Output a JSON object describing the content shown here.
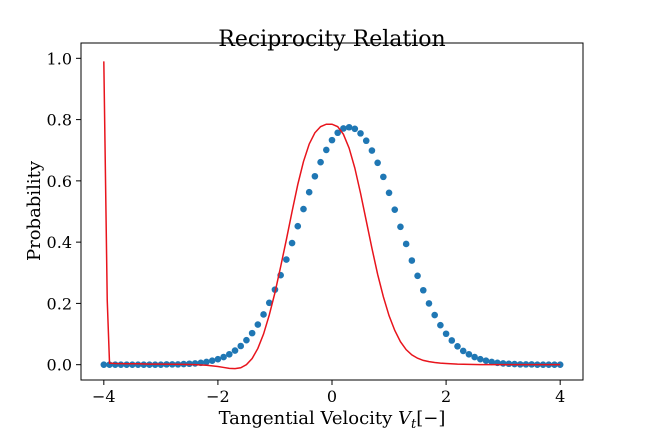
{
  "chart_data": {
    "type": "line",
    "title": "Reciprocity Relation",
    "xlabel_main": "Tangential Velocity ",
    "xlabel_var": "V",
    "xlabel_sub": "t",
    "xlabel_unit": "[−]",
    "ylabel": "Probability",
    "xlim": [
      -4.4,
      4.4
    ],
    "ylim": [
      -0.05,
      1.05
    ],
    "xticks": [
      -4,
      -2,
      0,
      2,
      4
    ],
    "xtick_labels": [
      "−4",
      "−2",
      "0",
      "2",
      "4"
    ],
    "yticks": [
      0.0,
      0.2,
      0.4,
      0.6,
      0.8,
      1.0
    ],
    "ytick_labels": [
      "0.0",
      "0.2",
      "0.4",
      "0.6",
      "0.8",
      "1.0"
    ],
    "grid": false,
    "series": [
      {
        "style": "markers",
        "color": "#1f77b4",
        "x": [
          -4.0,
          -3.9,
          -3.8,
          -3.7,
          -3.6,
          -3.5,
          -3.4,
          -3.3,
          -3.2,
          -3.1,
          -3.0,
          -2.9,
          -2.8,
          -2.7,
          -2.6,
          -2.5,
          -2.4,
          -2.3,
          -2.2,
          -2.1,
          -2.0,
          -1.9,
          -1.8,
          -1.7,
          -1.6,
          -1.5,
          -1.4,
          -1.3,
          -1.2,
          -1.1,
          -1.0,
          -0.9,
          -0.8,
          -0.7,
          -0.6,
          -0.5,
          -0.4,
          -0.3,
          -0.2,
          -0.1,
          0.0,
          0.1,
          0.2,
          0.3,
          0.4,
          0.5,
          0.6,
          0.7,
          0.8,
          0.9,
          1.0,
          1.1,
          1.2,
          1.3,
          1.4,
          1.5,
          1.6,
          1.7,
          1.8,
          1.9,
          2.0,
          2.1,
          2.2,
          2.3,
          2.4,
          2.5,
          2.6,
          2.7,
          2.8,
          2.9,
          3.0,
          3.1,
          3.2,
          3.3,
          3.4,
          3.5,
          3.6,
          3.7,
          3.8,
          3.9,
          4.0
        ],
        "y": [
          0.0,
          0.0,
          0.0,
          0.0,
          0.0,
          0.0,
          0.0,
          0.0,
          0.0,
          0.0,
          0.0,
          0.001,
          0.001,
          0.001,
          0.002,
          0.003,
          0.004,
          0.006,
          0.009,
          0.013,
          0.018,
          0.025,
          0.034,
          0.046,
          0.061,
          0.08,
          0.103,
          0.131,
          0.164,
          0.202,
          0.245,
          0.292,
          0.343,
          0.397,
          0.452,
          0.508,
          0.563,
          0.615,
          0.661,
          0.701,
          0.733,
          0.757,
          0.771,
          0.775,
          0.77,
          0.755,
          0.731,
          0.699,
          0.659,
          0.613,
          0.561,
          0.506,
          0.45,
          0.394,
          0.34,
          0.29,
          0.243,
          0.2,
          0.162,
          0.129,
          0.101,
          0.079,
          0.06,
          0.045,
          0.034,
          0.025,
          0.018,
          0.013,
          0.009,
          0.006,
          0.004,
          0.003,
          0.002,
          0.001,
          0.001,
          0.001,
          0.0,
          0.0,
          0.0,
          0.0,
          0.0
        ]
      },
      {
        "style": "line",
        "color": "#e8141c",
        "x": [
          -4.0,
          -3.98,
          -3.96,
          -3.94,
          -3.9,
          -3.8,
          -3.6,
          -3.4,
          -3.2,
          -3.0,
          -2.8,
          -2.6,
          -2.4,
          -2.2,
          -2.0,
          -1.9,
          -1.8,
          -1.7,
          -1.6,
          -1.5,
          -1.4,
          -1.3,
          -1.2,
          -1.1,
          -1.0,
          -0.9,
          -0.8,
          -0.7,
          -0.6,
          -0.5,
          -0.4,
          -0.3,
          -0.2,
          -0.1,
          0.0,
          0.1,
          0.2,
          0.3,
          0.4,
          0.5,
          0.6,
          0.7,
          0.8,
          0.9,
          1.0,
          1.1,
          1.2,
          1.3,
          1.4,
          1.5,
          1.6,
          1.7,
          1.8,
          1.9,
          2.0,
          2.2,
          2.4,
          2.6,
          2.8,
          3.0,
          3.2,
          3.4,
          3.6,
          3.8,
          4.0
        ],
        "y": [
          0.99,
          0.73,
          0.47,
          0.21,
          0.005,
          0.004,
          0.003,
          0.003,
          0.002,
          0.002,
          0.0015,
          0.001,
          0.0,
          -0.002,
          -0.006,
          -0.009,
          -0.012,
          -0.013,
          -0.01,
          0.0,
          0.02,
          0.053,
          0.1,
          0.162,
          0.235,
          0.32,
          0.408,
          0.5,
          0.588,
          0.663,
          0.72,
          0.757,
          0.777,
          0.785,
          0.785,
          0.777,
          0.752,
          0.707,
          0.642,
          0.56,
          0.47,
          0.38,
          0.295,
          0.222,
          0.16,
          0.112,
          0.075,
          0.049,
          0.032,
          0.021,
          0.014,
          0.01,
          0.007,
          0.005,
          0.004,
          0.002,
          0.001,
          0.0,
          0.0,
          0.0,
          0.0,
          0.0,
          0.0,
          0.0,
          0.0
        ]
      }
    ]
  }
}
